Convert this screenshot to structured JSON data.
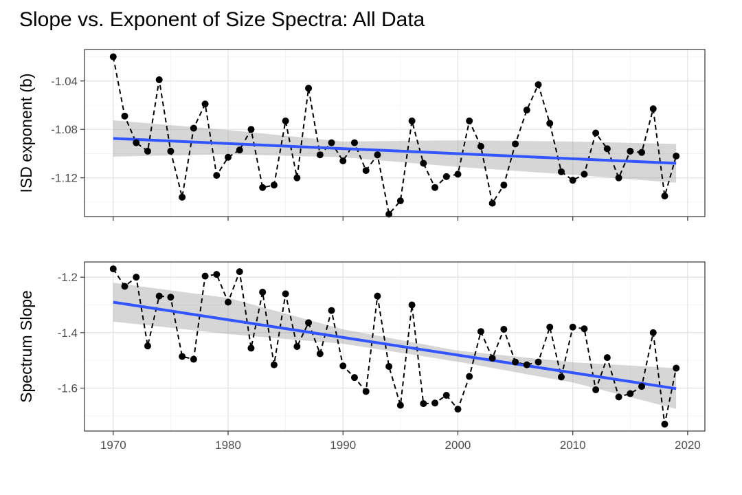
{
  "title": "Slope vs. Exponent of Size Spectra: All Data",
  "colors": {
    "trend": "#3355ff",
    "band": "#999999",
    "points": "#000000"
  },
  "chart_data": [
    {
      "type": "line",
      "ylabel": "ISD exponent (b)",
      "xlim": [
        1967.5,
        2021.5
      ],
      "ylim": [
        -1.152,
        -1.014
      ],
      "x_ticks": [
        1970,
        1980,
        1990,
        2000,
        2010,
        2020
      ],
      "x_tick_labels": false,
      "y_ticks": [
        -1.04,
        -1.08,
        -1.12
      ],
      "y_tick_labels": [
        "-1.04",
        "-1.08",
        "-1.12"
      ],
      "grid": true,
      "x": [
        1970,
        1971,
        1972,
        1973,
        1974,
        1975,
        1976,
        1977,
        1978,
        1979,
        1980,
        1981,
        1982,
        1983,
        1984,
        1985,
        1986,
        1987,
        1988,
        1989,
        1990,
        1991,
        1992,
        1993,
        1994,
        1995,
        1996,
        1997,
        1998,
        1999,
        2000,
        2001,
        2002,
        2003,
        2004,
        2005,
        2006,
        2007,
        2008,
        2009,
        2010,
        2011,
        2012,
        2013,
        2014,
        2015,
        2016,
        2017,
        2018,
        2019
      ],
      "series": [
        {
          "values": [
            -1.02,
            -1.069,
            -1.091,
            -1.098,
            -1.039,
            -1.098,
            -1.136,
            -1.079,
            -1.059,
            -1.118,
            -1.103,
            -1.097,
            -1.08,
            -1.128,
            -1.126,
            -1.073,
            -1.12,
            -1.046,
            -1.101,
            -1.091,
            -1.106,
            -1.091,
            -1.114,
            -1.101,
            -1.15,
            -1.139,
            -1.073,
            -1.108,
            -1.128,
            -1.119,
            -1.117,
            -1.073,
            -1.094,
            -1.141,
            -1.126,
            -1.092,
            -1.064,
            -1.043,
            -1.075,
            -1.115,
            -1.122,
            -1.117,
            -1.083,
            -1.096,
            -1.12,
            -1.098,
            -1.099,
            -1.063,
            -1.135,
            -1.102
          ]
        }
      ],
      "trend": {
        "x": [
          1970,
          2019
        ],
        "y": [
          -1.0875,
          -1.108
        ]
      },
      "band": {
        "x": [
          1970,
          1980,
          1990,
          2000,
          2010,
          2019
        ],
        "lower": [
          -1.1025,
          -1.1005,
          -1.103,
          -1.111,
          -1.1175,
          -1.124
        ],
        "upper": [
          -1.0725,
          -1.0805,
          -1.09,
          -1.089,
          -1.09,
          -1.092
        ]
      }
    },
    {
      "type": "line",
      "ylabel": "Spectrum Slope",
      "xlim": [
        1967.5,
        2021.5
      ],
      "ylim": [
        -1.755,
        -1.145
      ],
      "x_ticks": [
        1970,
        1980,
        1990,
        2000,
        2010,
        2020
      ],
      "x_tick_labels": [
        "1970",
        "1980",
        "1990",
        "2000",
        "2010",
        "2020"
      ],
      "y_ticks": [
        -1.2,
        -1.4,
        -1.6
      ],
      "y_tick_labels": [
        "-1.2",
        "-1.4",
        "-1.6"
      ],
      "grid": true,
      "x": [
        1970,
        1971,
        1972,
        1973,
        1974,
        1975,
        1976,
        1977,
        1978,
        1979,
        1980,
        1981,
        1982,
        1983,
        1984,
        1985,
        1986,
        1987,
        1988,
        1989,
        1990,
        1991,
        1992,
        1993,
        1994,
        1995,
        1996,
        1997,
        1998,
        1999,
        2000,
        2001,
        2002,
        2003,
        2004,
        2005,
        2006,
        2007,
        2008,
        2009,
        2010,
        2011,
        2012,
        2013,
        2014,
        2015,
        2016,
        2017,
        2018,
        2019
      ],
      "series": [
        {
          "values": [
            -1.17,
            -1.233,
            -1.2,
            -1.448,
            -1.268,
            -1.272,
            -1.486,
            -1.496,
            -1.196,
            -1.19,
            -1.29,
            -1.18,
            -1.456,
            -1.254,
            -1.516,
            -1.26,
            -1.45,
            -1.364,
            -1.476,
            -1.32,
            -1.52,
            -1.562,
            -1.612,
            -1.268,
            -1.522,
            -1.662,
            -1.3,
            -1.656,
            -1.654,
            -1.626,
            -1.676,
            -1.558,
            -1.396,
            -1.492,
            -1.388,
            -1.506,
            -1.516,
            -1.506,
            -1.38,
            -1.56,
            -1.38,
            -1.386,
            -1.606,
            -1.49,
            -1.632,
            -1.62,
            -1.594,
            -1.4,
            -1.73,
            -1.528
          ]
        }
      ],
      "trend": {
        "x": [
          1970,
          2019
        ],
        "y": [
          -1.29,
          -1.602
        ]
      },
      "band": {
        "x": [
          1970,
          1980,
          1990,
          2000,
          2010,
          2019
        ],
        "lower": [
          -1.36,
          -1.405,
          -1.44,
          -1.505,
          -1.58,
          -1.675
        ],
        "upper": [
          -1.22,
          -1.275,
          -1.388,
          -1.465,
          -1.507,
          -1.528
        ]
      }
    }
  ]
}
